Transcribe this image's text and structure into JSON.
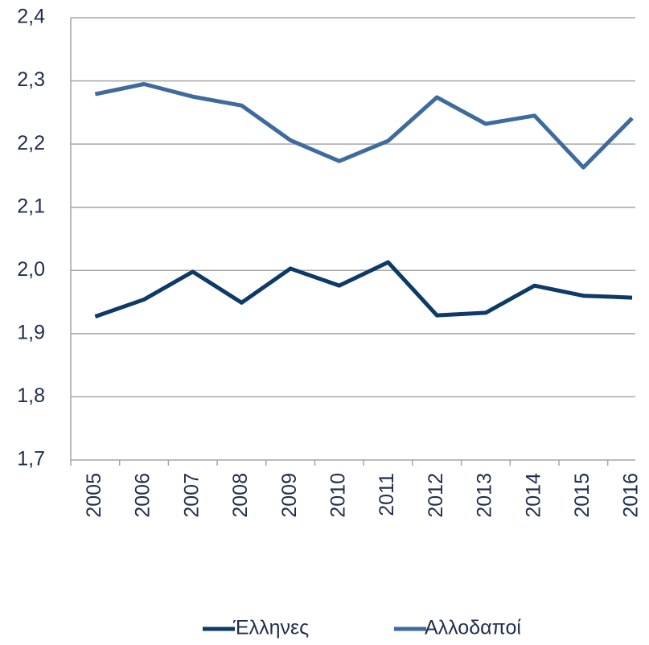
{
  "chart_data": {
    "type": "line",
    "categories": [
      "2005",
      "2006",
      "2007",
      "2008",
      "2009",
      "2010",
      "2011",
      "2012",
      "2013",
      "2014",
      "2015",
      "2016"
    ],
    "series": [
      {
        "name": "Έλληνες",
        "color": "#0d3a66",
        "values": [
          1.927,
          1.954,
          1.998,
          1.949,
          2.003,
          1.976,
          2.013,
          1.929,
          1.933,
          1.976,
          1.96,
          1.957
        ]
      },
      {
        "name": "Αλλοδαποί",
        "color": "#3e6b9e",
        "values": [
          2.279,
          2.295,
          2.275,
          2.261,
          2.206,
          2.173,
          2.205,
          2.274,
          2.232,
          2.245,
          2.163,
          2.241
        ]
      }
    ],
    "ylim": [
      1.7,
      2.4
    ],
    "yticks": [
      {
        "value": 1.7,
        "label": "1,7"
      },
      {
        "value": 1.8,
        "label": "1,8"
      },
      {
        "value": 1.9,
        "label": "1,9"
      },
      {
        "value": 2.0,
        "label": "2,0"
      },
      {
        "value": 2.1,
        "label": "2,1"
      },
      {
        "value": 2.2,
        "label": "2,2"
      },
      {
        "value": 2.3,
        "label": "2,3"
      },
      {
        "value": 2.4,
        "label": "2,4"
      }
    ],
    "grid": true
  }
}
